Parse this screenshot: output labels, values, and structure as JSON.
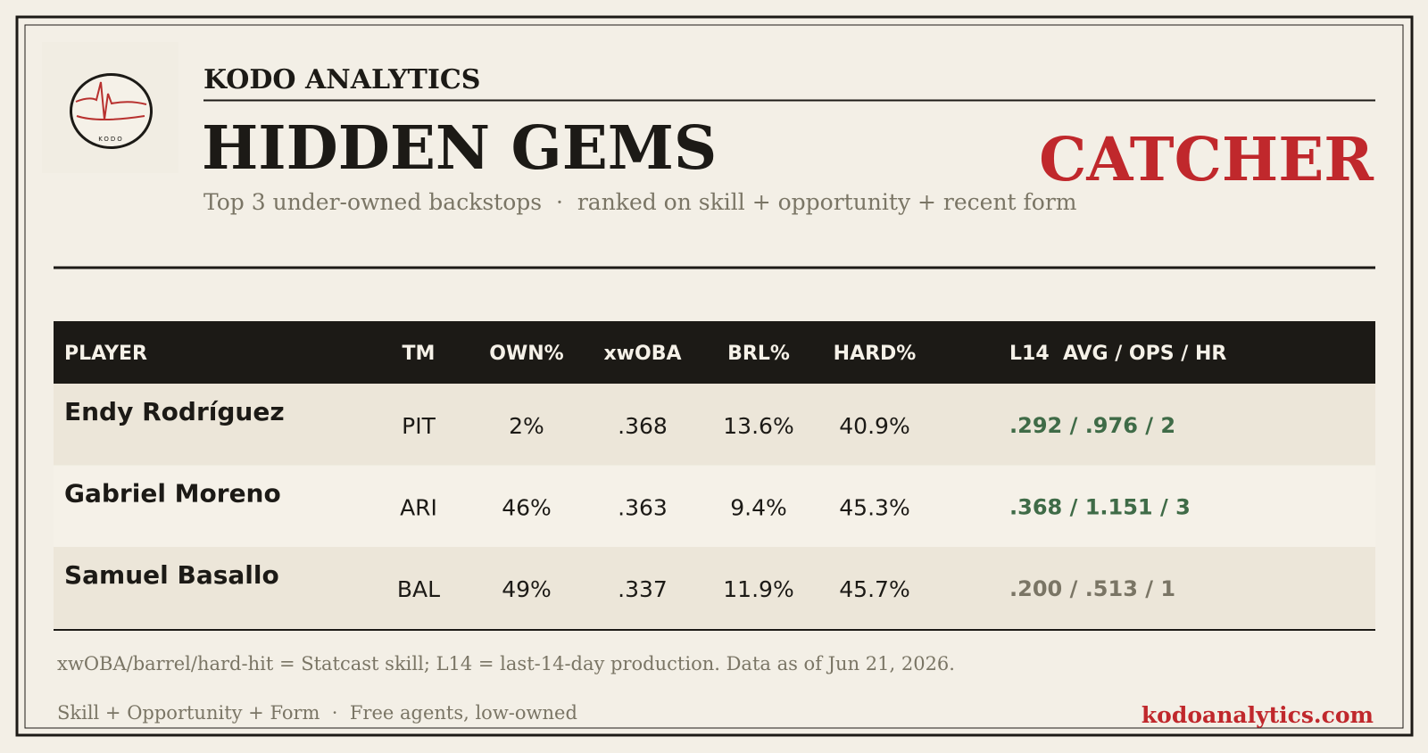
{
  "header": {
    "brand": "KODO ANALYTICS",
    "title": "HIDDEN GEMS",
    "position": "CATCHER",
    "subtitle": "Top 3 under-owned backstops  ·  ranked on skill + opportunity + recent form"
  },
  "logo": {
    "text": "KODO"
  },
  "table": {
    "columns": [
      "PLAYER",
      "TM",
      "OWN%",
      "xwOBA",
      "BRL%",
      "HARD%",
      "L14  AVG / OPS / HR"
    ],
    "rows": [
      [
        "Endy Rodríguez",
        "PIT",
        "2%",
        ".368",
        "13.6%",
        "40.9%",
        ".292 / .976 / 2"
      ],
      [
        "Gabriel Moreno",
        "ARI",
        "46%",
        ".363",
        "9.4%",
        "45.3%",
        ".368 / 1.151 / 3"
      ],
      [
        "Samuel Basallo",
        "BAL",
        "49%",
        ".337",
        "11.9%",
        "45.7%",
        ".200 / .513 / 1"
      ]
    ],
    "l14_colors": [
      "#3f6b47",
      "#3f6b47",
      "#7a7565"
    ]
  },
  "footer": {
    "note": "xwOBA/barrel/hard-hit = Statcast skill; L14 = last-14-day production. Data as of Jun 21, 2026.",
    "tagline": "Skill + Opportunity + Form  ·  Free agents, low-owned",
    "url": "kodoanalytics.com"
  }
}
